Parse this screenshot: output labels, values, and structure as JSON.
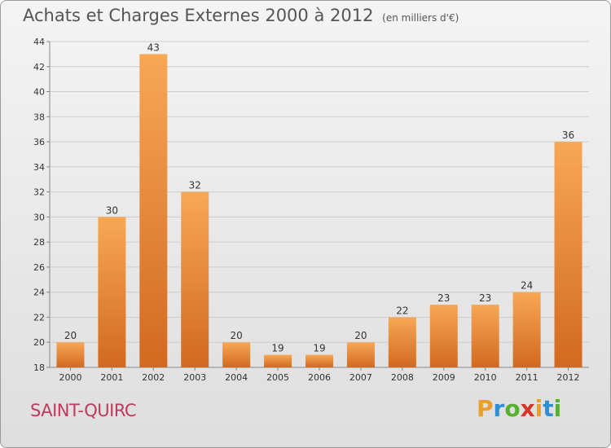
{
  "header": {
    "title": "Achats et Charges Externes 2000 à 2012",
    "subtitle": "(en milliers d'€)"
  },
  "footer": {
    "commune": "SAINT-QUIRC",
    "logo_letters": [
      "P",
      "r",
      "o",
      "x",
      "i",
      "t",
      "i"
    ],
    "logo_colors": [
      "#e8a02a",
      "#2f8fd2",
      "#58b030",
      "#d8352a",
      "#e8a02a",
      "#2f8fd2",
      "#58b030"
    ]
  },
  "colors": {
    "bar_light": "#f7a855",
    "bar_dark": "#d2691e",
    "grid": "#cccccc",
    "axis": "#888888",
    "label": "#333333"
  },
  "chart_data": {
    "type": "bar",
    "categories": [
      "2000",
      "2001",
      "2002",
      "2003",
      "2004",
      "2005",
      "2006",
      "2007",
      "2008",
      "2009",
      "2010",
      "2011",
      "2012"
    ],
    "values": [
      20,
      30,
      43,
      32,
      20,
      19,
      19,
      20,
      22,
      23,
      23,
      24,
      36
    ],
    "title": "Achats et Charges Externes 2000 à 2012",
    "ylim": [
      18,
      44
    ],
    "yticks": [
      18,
      20,
      22,
      24,
      26,
      28,
      30,
      32,
      34,
      36,
      38,
      40,
      42,
      44
    ],
    "grid": true
  }
}
